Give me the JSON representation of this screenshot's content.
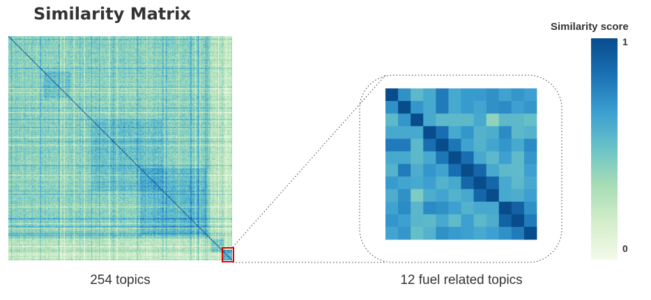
{
  "title": "Similarity Matrix",
  "chart_data": [
    {
      "type": "heatmap",
      "name": "full-matrix",
      "xlabel": "254 topics",
      "n": 254,
      "colorscale": [
        "#f3fae9",
        "#d4eecb",
        "#a8ddb5",
        "#6bc3c8",
        "#3b9fd0",
        "#1a72b4",
        "#084c8c"
      ],
      "highlight_color": "#e00000"
    },
    {
      "type": "heatmap",
      "name": "zoom-matrix",
      "xlabel": "12 fuel related topics",
      "n": 12,
      "values": [
        [
          1.0,
          0.72,
          0.55,
          0.62,
          0.8,
          0.62,
          0.68,
          0.68,
          0.72,
          0.65,
          0.7,
          0.66
        ],
        [
          0.72,
          1.0,
          0.7,
          0.62,
          0.8,
          0.62,
          0.68,
          0.64,
          0.72,
          0.74,
          0.66,
          0.7
        ],
        [
          0.55,
          0.7,
          1.0,
          0.62,
          0.55,
          0.55,
          0.55,
          0.62,
          0.4,
          0.55,
          0.55,
          0.52
        ],
        [
          0.62,
          0.62,
          0.62,
          1.0,
          0.85,
          0.62,
          0.7,
          0.58,
          0.6,
          0.74,
          0.55,
          0.58
        ],
        [
          0.8,
          0.8,
          0.55,
          0.85,
          1.0,
          0.82,
          0.65,
          0.58,
          0.64,
          0.7,
          0.62,
          0.74
        ],
        [
          0.62,
          0.62,
          0.55,
          0.62,
          0.82,
          1.0,
          0.85,
          0.62,
          0.55,
          0.66,
          0.54,
          0.7
        ],
        [
          0.58,
          0.8,
          0.6,
          0.7,
          0.65,
          0.85,
          1.0,
          0.88,
          0.62,
          0.55,
          0.54,
          0.66
        ],
        [
          0.68,
          0.64,
          0.62,
          0.66,
          0.58,
          0.62,
          0.88,
          1.0,
          0.88,
          0.62,
          0.55,
          0.62
        ],
        [
          0.6,
          0.72,
          0.45,
          0.6,
          0.64,
          0.58,
          0.62,
          0.88,
          1.0,
          0.62,
          0.6,
          0.66
        ],
        [
          0.65,
          0.74,
          0.56,
          0.74,
          0.72,
          0.66,
          0.58,
          0.62,
          0.62,
          1.0,
          0.9,
          0.72
        ],
        [
          0.7,
          0.66,
          0.56,
          0.55,
          0.62,
          0.54,
          0.66,
          0.55,
          0.6,
          0.9,
          1.0,
          0.8
        ],
        [
          0.64,
          0.7,
          0.52,
          0.58,
          0.72,
          0.68,
          0.66,
          0.62,
          0.66,
          0.72,
          0.8,
          1.0
        ]
      ]
    }
  ],
  "colorbar": {
    "title": "Similarity score",
    "max_label": "1",
    "min_label": "0"
  }
}
